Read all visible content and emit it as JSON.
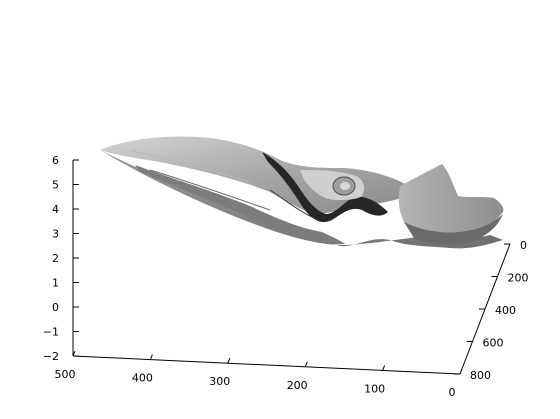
{
  "chart_data": {
    "type": "surface",
    "title": "",
    "xlabel": "",
    "ylabel": "",
    "zlabel": "",
    "grid": false,
    "colormap": "gray",
    "x_axis": {
      "ticks": [
        "500",
        "400",
        "300",
        "200",
        "100",
        "0"
      ],
      "range": [
        0,
        500
      ]
    },
    "y_axis": {
      "ticks": [
        "0",
        "200",
        "400",
        "600",
        "800"
      ],
      "range": [
        0,
        800
      ]
    },
    "z_axis": {
      "ticks": [
        "6",
        "5",
        "4",
        "3",
        "2",
        "1",
        "0",
        "−1",
        "−2"
      ],
      "range": [
        -2,
        6
      ]
    },
    "surface_description_colors": {
      "light": "#c8c8c8",
      "mid": "#8c8c8c",
      "dark": "#333333"
    }
  }
}
